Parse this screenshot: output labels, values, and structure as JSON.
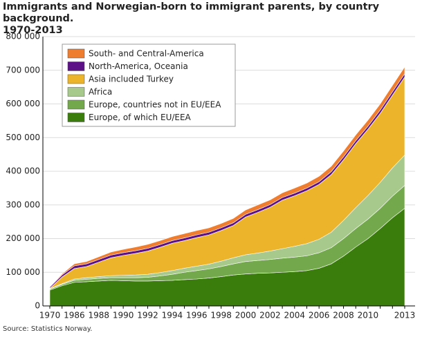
{
  "chart_data": {
    "type": "stacked-area",
    "title": "Immigrants and Norwegian-born to immigrant parents, by country background.\n1970-2013",
    "source": "Source: Statistics Norway.",
    "categories": [
      "1970",
      null,
      "1986",
      null,
      "1988",
      null,
      "1990",
      null,
      "1992",
      null,
      "1994",
      null,
      "1996",
      null,
      "1998",
      null,
      "2000",
      null,
      "2002",
      null,
      "2004",
      null,
      "2006",
      null,
      "2008",
      null,
      "2010",
      null,
      null,
      "2013"
    ],
    "ylim": [
      0,
      800000
    ],
    "yticks": [
      0,
      {
        "value": 100000,
        "label": "100 000"
      },
      {
        "value": 200000,
        "label": "200 000"
      },
      {
        "value": 300000,
        "label": "300 000"
      },
      {
        "value": 400000,
        "label": "400 000"
      },
      {
        "value": 500000,
        "label": "500 000"
      },
      {
        "value": 600000,
        "label": "600 000"
      },
      {
        "value": 700000,
        "label": "700 000"
      },
      {
        "value": 800000,
        "label": "800 000"
      }
    ],
    "grid": true,
    "legend": "upper-left",
    "series": [
      {
        "name": "Europe, of which EU/EEA",
        "color": "#3b7d0c",
        "values": [
          47000,
          60000,
          70000,
          72000,
          74000,
          76000,
          75000,
          74000,
          74000,
          75000,
          76000,
          78000,
          80000,
          83000,
          87000,
          92000,
          95000,
          97000,
          98000,
          100000,
          102000,
          105000,
          112000,
          125000,
          148000,
          175000,
          200000,
          230000,
          262000,
          290000
        ]
      },
      {
        "name": "Europe, countries not in EU/EEA",
        "color": "#73a84c",
        "values": [
          3000,
          4000,
          6000,
          7000,
          8000,
          8000,
          9000,
          10000,
          11000,
          14000,
          18000,
          22000,
          25000,
          27000,
          30000,
          33000,
          37000,
          38000,
          40000,
          42000,
          43000,
          44000,
          46000,
          48000,
          52000,
          55000,
          58000,
          60000,
          64000,
          68000
        ]
      },
      {
        "name": "Africa",
        "color": "#a7c98c",
        "values": [
          1000,
          2000,
          4000,
          5000,
          5000,
          6000,
          7000,
          8000,
          9000,
          10000,
          11000,
          12000,
          13000,
          14000,
          16000,
          18000,
          20000,
          22000,
          25000,
          28000,
          32000,
          36000,
          40000,
          46000,
          54000,
          62000,
          70000,
          77000,
          84000,
          90000
        ]
      },
      {
        "name": "Asia included Turkey",
        "color": "#ecb42b",
        "values": [
          1000,
          20000,
          31000,
          33000,
          43000,
          53000,
          59000,
          64000,
          69000,
          75000,
          81000,
          82000,
          85000,
          87000,
          91000,
          96000,
          112000,
          121000,
          130000,
          144000,
          150000,
          157000,
          163000,
          171000,
          180000,
          190000,
          197000,
          205000,
          216000,
          232000
        ]
      },
      {
        "name": "North-America, Oceania",
        "color": "#5c1186",
        "values": [
          4000,
          6000,
          8000,
          8000,
          8000,
          8000,
          8000,
          8000,
          8000,
          8000,
          8000,
          8000,
          8000,
          8000,
          8000,
          8000,
          8000,
          8000,
          8000,
          8000,
          8000,
          8000,
          8000,
          9000,
          9000,
          9000,
          9000,
          10000,
          10000,
          10000
        ]
      },
      {
        "name": "South- and Central-America",
        "color": "#ee7d2f",
        "values": [
          1000,
          3000,
          6000,
          7000,
          8000,
          9000,
          10000,
          11000,
          12000,
          12000,
          12000,
          13000,
          13000,
          13000,
          13000,
          13000,
          13000,
          14000,
          14000,
          14000,
          15000,
          15000,
          16000,
          16000,
          17000,
          17000,
          18000,
          18000,
          19000,
          20000
        ]
      }
    ]
  }
}
